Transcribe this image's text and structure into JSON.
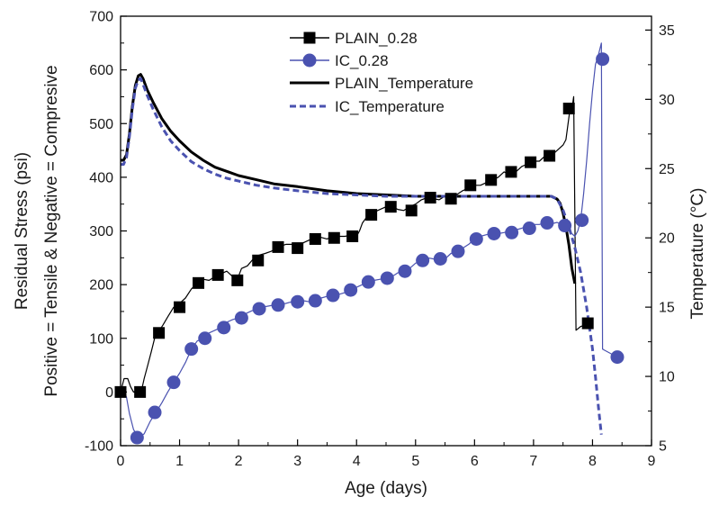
{
  "chart_data": {
    "type": "line",
    "xlabel": "Age (days)",
    "ylabel_lines": [
      "Residual Stress (psi)",
      "Positive = Tensile & Negative = Compresive"
    ],
    "y2label": "Temperature (°C)",
    "xlim": [
      0,
      9
    ],
    "ylim": [
      -100,
      700
    ],
    "y2lim": [
      5,
      36
    ],
    "xticks": [
      0,
      1,
      2,
      3,
      4,
      5,
      6,
      7,
      8,
      9
    ],
    "yticks": [
      -100,
      0,
      100,
      200,
      300,
      400,
      500,
      600,
      700
    ],
    "y2ticks": [
      5,
      10,
      15,
      20,
      25,
      30,
      35
    ],
    "grid": false,
    "legend_position": "top-center",
    "colors": {
      "plain": "#000000",
      "ic": "#4a52b0"
    },
    "series": [
      {
        "name": "PLAIN_0.28",
        "axis": "left",
        "marker": "square",
        "color": "#000000",
        "x": [
          0,
          0.06,
          0.12,
          0.17,
          0.22,
          0.28,
          0.31,
          0.35,
          0.4,
          0.46,
          0.52,
          0.6,
          0.66,
          0.72,
          0.8,
          0.9,
          1.0,
          1.1,
          1.2,
          1.3,
          1.4,
          1.5,
          1.6,
          1.7,
          1.8,
          1.9,
          1.98,
          2.05,
          2.15,
          2.25,
          2.35,
          2.45,
          2.55,
          2.67,
          2.8,
          2.9,
          3.0,
          3.1,
          3.2,
          3.3,
          3.4,
          3.5,
          3.6,
          3.7,
          3.8,
          3.9,
          4.0,
          4.05,
          4.1,
          4.2,
          4.3,
          4.4,
          4.5,
          4.6,
          4.7,
          4.8,
          4.9,
          5.0,
          5.1,
          5.2,
          5.3,
          5.4,
          5.5,
          5.6,
          5.7,
          5.8,
          5.9,
          6.0,
          6.1,
          6.2,
          6.3,
          6.4,
          6.5,
          6.6,
          6.7,
          6.8,
          6.9,
          7.0,
          7.1,
          7.2,
          7.3,
          7.4,
          7.5,
          7.55,
          7.62,
          7.66,
          7.68,
          7.72,
          7.8,
          7.9,
          7.96
        ],
        "y": [
          0,
          25,
          25,
          10,
          0,
          0,
          0,
          0,
          25,
          50,
          75,
          110,
          115,
          125,
          140,
          158,
          165,
          175,
          192,
          203,
          210,
          208,
          215,
          220,
          225,
          215,
          210,
          230,
          235,
          248,
          255,
          258,
          262,
          270,
          275,
          275,
          270,
          278,
          283,
          287,
          288,
          285,
          290,
          290,
          290,
          292,
          290,
          300,
          315,
          330,
          335,
          340,
          345,
          345,
          340,
          338,
          345,
          350,
          358,
          362,
          360,
          358,
          365,
          360,
          368,
          375,
          380,
          385,
          385,
          390,
          395,
          400,
          410,
          405,
          410,
          420,
          425,
          430,
          430,
          440,
          440,
          450,
          460,
          470,
          528,
          535,
          550,
          115,
          122,
          125,
          128
        ],
        "markers_x": [
          0,
          0.33,
          0.65,
          1.0,
          1.32,
          1.65,
          1.98,
          2.33,
          2.67,
          3.0,
          3.3,
          3.62,
          3.93,
          4.25,
          4.58,
          4.93,
          5.25,
          5.6,
          5.93,
          6.28,
          6.62,
          6.95,
          7.27,
          7.6,
          7.92
        ],
        "markers_y": [
          0,
          0,
          110,
          158,
          203,
          218,
          208,
          245,
          270,
          268,
          285,
          287,
          290,
          330,
          345,
          338,
          362,
          360,
          385,
          395,
          410,
          428,
          440,
          528,
          128
        ]
      },
      {
        "name": "IC_0.28",
        "axis": "left",
        "marker": "circle",
        "color": "#4a52b0",
        "x": [
          0,
          0.05,
          0.1,
          0.15,
          0.22,
          0.3,
          0.4,
          0.5,
          0.6,
          0.7,
          0.8,
          0.9,
          1.0,
          1.1,
          1.2,
          1.3,
          1.4,
          1.5,
          1.6,
          1.7,
          1.8,
          1.9,
          2.0,
          2.1,
          2.2,
          2.3,
          2.4,
          2.5,
          2.6,
          2.7,
          2.8,
          2.9,
          3.0,
          3.1,
          3.2,
          3.3,
          3.4,
          3.5,
          3.6,
          3.7,
          3.8,
          3.9,
          4.0,
          4.1,
          4.2,
          4.3,
          4.4,
          4.5,
          4.6,
          4.7,
          4.8,
          4.9,
          5.0,
          5.1,
          5.2,
          5.3,
          5.4,
          5.5,
          5.6,
          5.7,
          5.8,
          5.9,
          6.0,
          6.1,
          6.2,
          6.3,
          6.4,
          6.5,
          6.6,
          6.7,
          6.8,
          6.9,
          7.0,
          7.1,
          7.2,
          7.3,
          7.4,
          7.5,
          7.6,
          7.7,
          7.75,
          7.8,
          7.85,
          7.9,
          7.95,
          8.0,
          8.05,
          8.1,
          8.15,
          8.17,
          8.2,
          8.3,
          8.42
        ],
        "y": [
          0,
          5,
          -10,
          -40,
          -70,
          -85,
          -78,
          -55,
          -38,
          -20,
          0,
          18,
          35,
          55,
          80,
          95,
          100,
          110,
          115,
          120,
          130,
          135,
          138,
          145,
          150,
          155,
          158,
          160,
          162,
          163,
          165,
          168,
          170,
          170,
          168,
          172,
          175,
          178,
          180,
          182,
          185,
          190,
          195,
          200,
          205,
          208,
          210,
          212,
          215,
          222,
          225,
          230,
          240,
          245,
          250,
          248,
          245,
          248,
          258,
          262,
          268,
          275,
          285,
          290,
          293,
          295,
          295,
          297,
          300,
          302,
          305,
          310,
          312,
          312,
          315,
          313,
          316,
          310,
          300,
          290,
          300,
          320,
          370,
          430,
          500,
          560,
          610,
          628,
          650,
          80,
          78,
          72,
          65
        ],
        "markers_x": [
          0.28,
          0.58,
          0.9,
          1.2,
          1.43,
          1.75,
          2.05,
          2.35,
          2.67,
          3.0,
          3.3,
          3.6,
          3.9,
          4.2,
          4.52,
          4.82,
          5.12,
          5.42,
          5.72,
          6.03,
          6.33,
          6.63,
          6.93,
          7.23,
          7.53,
          7.82,
          8.17,
          8.42
        ],
        "markers_y": [
          -85,
          -38,
          18,
          80,
          100,
          120,
          138,
          155,
          162,
          168,
          170,
          180,
          190,
          205,
          212,
          225,
          245,
          248,
          262,
          285,
          295,
          297,
          305,
          315,
          310,
          320,
          620,
          65
        ]
      },
      {
        "name": "PLAIN_Temperature",
        "axis": "right",
        "style": "solid",
        "color": "#000000",
        "x": [
          0,
          0.05,
          0.1,
          0.15,
          0.2,
          0.25,
          0.3,
          0.34,
          0.38,
          0.45,
          0.55,
          0.7,
          0.85,
          1.0,
          1.2,
          1.4,
          1.6,
          1.8,
          2.0,
          2.3,
          2.6,
          3.0,
          3.5,
          4.0,
          4.5,
          5.0,
          5.5,
          6.0,
          6.5,
          7.0,
          7.3,
          7.4,
          7.45,
          7.5,
          7.55,
          7.6,
          7.65,
          7.7
        ],
        "y": [
          25.6,
          25.6,
          26.0,
          27.5,
          29.5,
          31.0,
          31.7,
          31.8,
          31.5,
          30.7,
          29.8,
          28.6,
          27.7,
          27.0,
          26.2,
          25.6,
          25.1,
          24.8,
          24.5,
          24.2,
          23.9,
          23.7,
          23.4,
          23.2,
          23.1,
          23.0,
          23.0,
          23.0,
          23.0,
          23.0,
          23.0,
          22.8,
          22.5,
          21.8,
          20.8,
          19.5,
          17.8,
          16.7
        ]
      },
      {
        "name": "IC_Temperature",
        "axis": "right",
        "style": "dashed",
        "color": "#4a52b0",
        "x": [
          0,
          0.05,
          0.1,
          0.15,
          0.2,
          0.25,
          0.3,
          0.34,
          0.38,
          0.45,
          0.55,
          0.7,
          0.85,
          1.0,
          1.2,
          1.4,
          1.6,
          1.8,
          2.0,
          2.3,
          2.6,
          3.0,
          3.5,
          4.0,
          4.5,
          5.0,
          5.5,
          6.0,
          6.5,
          7.0,
          7.3,
          7.4,
          7.5,
          7.6,
          7.7,
          7.8,
          7.9,
          8.0,
          8.05,
          8.1,
          8.15
        ],
        "y": [
          25.3,
          25.3,
          25.8,
          27.3,
          29.3,
          30.8,
          31.4,
          31.5,
          31.1,
          30.3,
          29.3,
          28.0,
          27.0,
          26.3,
          25.5,
          25.0,
          24.6,
          24.3,
          24.1,
          23.8,
          23.6,
          23.4,
          23.2,
          23.1,
          23.0,
          23.0,
          23.0,
          23.0,
          23.0,
          23.0,
          23.0,
          22.8,
          22.0,
          20.8,
          19.3,
          17.5,
          15.0,
          12.0,
          10.0,
          7.8,
          5.8
        ]
      }
    ]
  }
}
